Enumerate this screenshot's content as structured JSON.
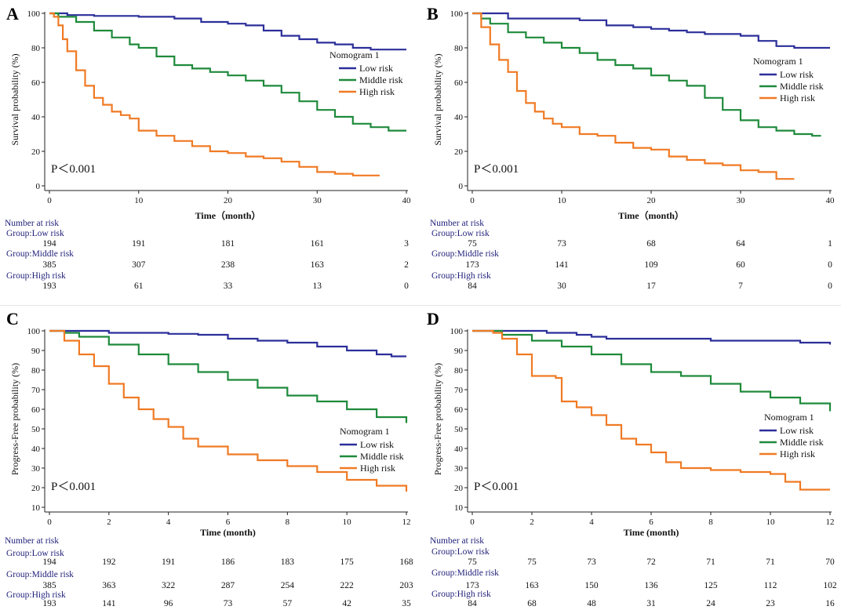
{
  "colors": {
    "low": "#2b2f9a",
    "middle": "#1e8a3b",
    "high": "#f07a24",
    "risk_text": "#1f1f7a"
  },
  "chart_data": [
    {
      "type": "line",
      "panel": "A",
      "ylabel": "Survival probability (%)",
      "xlabel": "Time（month）",
      "xlim": [
        0,
        40
      ],
      "ylim": [
        0,
        100
      ],
      "xticks": [
        0,
        10,
        20,
        30,
        40
      ],
      "yticks": [
        0,
        20,
        40,
        60,
        80,
        100
      ],
      "pvalue": "P＜0.001",
      "legend": {
        "title": "Nomogram 1",
        "position": "top-right"
      },
      "series": [
        {
          "name": "Low risk",
          "key": "low",
          "x": [
            0,
            2,
            5,
            10,
            14,
            17,
            20,
            22,
            24,
            26,
            28,
            30,
            32,
            34,
            36,
            37,
            40
          ],
          "y": [
            100,
            99,
            98.5,
            98,
            97,
            95,
            94,
            93,
            90,
            87,
            85,
            83,
            82,
            80,
            79,
            79,
            79
          ]
        },
        {
          "name": "Middle risk",
          "key": "middle",
          "x": [
            0,
            1,
            3,
            5,
            7,
            9,
            10,
            12,
            14,
            16,
            18,
            20,
            22,
            24,
            26,
            28,
            30,
            32,
            34,
            36,
            38,
            40
          ],
          "y": [
            100,
            98,
            95,
            90,
            86,
            82,
            80,
            75,
            70,
            68,
            66,
            64,
            61,
            58,
            54,
            49,
            44,
            40,
            36,
            34,
            32,
            32
          ]
        },
        {
          "name": "High risk",
          "key": "high",
          "x": [
            0,
            0.5,
            1,
            1.5,
            2,
            3,
            4,
            5,
            6,
            7,
            8,
            9,
            10,
            12,
            14,
            16,
            18,
            20,
            22,
            24,
            26,
            28,
            30,
            32,
            34,
            36,
            37
          ],
          "y": [
            100,
            98,
            93,
            85,
            78,
            67,
            58,
            51,
            47,
            43,
            41,
            39,
            32,
            29,
            26,
            23,
            20,
            19,
            17,
            16,
            14,
            11,
            8,
            7,
            6,
            6,
            6
          ]
        }
      ],
      "at_risk": {
        "header": "Number at risk",
        "groups": [
          {
            "label": "Group:Low risk",
            "values": [
              "194",
              "191",
              "181",
              "161",
              "3"
            ]
          },
          {
            "label": "Group:Middle risk",
            "values": [
              "385",
              "307",
              "238",
              "163",
              "2"
            ]
          },
          {
            "label": "Group:High risk",
            "values": [
              "193",
              "61",
              "33",
              "13",
              "0"
            ]
          }
        ]
      }
    },
    {
      "type": "line",
      "panel": "B",
      "ylabel": "Survival probability (%)",
      "xlabel": "Time（month）",
      "xlim": [
        0,
        40
      ],
      "ylim": [
        0,
        100
      ],
      "xticks": [
        0,
        10,
        20,
        30,
        40
      ],
      "yticks": [
        0,
        20,
        40,
        60,
        80,
        100
      ],
      "pvalue": "P＜0.001",
      "legend": {
        "title": "Nomogram 1",
        "position": "top-right"
      },
      "series": [
        {
          "name": "Low risk",
          "key": "low",
          "x": [
            0,
            3,
            4,
            8,
            12,
            15,
            18,
            20,
            22,
            24,
            26,
            28,
            30,
            32,
            34,
            36,
            38,
            40
          ],
          "y": [
            100,
            100,
            97,
            97,
            96,
            93,
            92,
            91,
            90,
            89,
            88,
            88,
            87,
            84,
            81,
            80,
            80,
            80
          ]
        },
        {
          "name": "Middle risk",
          "key": "middle",
          "x": [
            0,
            1,
            2,
            4,
            6,
            8,
            10,
            12,
            14,
            16,
            18,
            20,
            22,
            24,
            26,
            28,
            30,
            32,
            34,
            36,
            38,
            39
          ],
          "y": [
            100,
            97,
            94,
            89,
            86,
            83,
            80,
            77,
            73,
            70,
            68,
            64,
            61,
            58,
            51,
            44,
            38,
            34,
            32,
            30,
            29,
            29
          ]
        },
        {
          "name": "High risk",
          "key": "high",
          "x": [
            0,
            1,
            2,
            3,
            4,
            5,
            6,
            7,
            8,
            9,
            10,
            12,
            14,
            16,
            18,
            20,
            22,
            24,
            26,
            28,
            30,
            32,
            34,
            36
          ],
          "y": [
            100,
            92,
            82,
            73,
            66,
            55,
            48,
            43,
            39,
            36,
            34,
            30,
            29,
            25,
            22,
            21,
            17,
            15,
            13,
            12,
            9,
            8,
            4,
            4
          ]
        }
      ],
      "at_risk": {
        "header": "Number at risk",
        "groups": [
          {
            "label": "Group:Low risk",
            "values": [
              "75",
              "73",
              "68",
              "64",
              "1"
            ]
          },
          {
            "label": "Group:Middle risk",
            "values": [
              "173",
              "141",
              "109",
              "60",
              "0"
            ]
          },
          {
            "label": "Group:High risk",
            "values": [
              "84",
              "30",
              "17",
              "7",
              "0"
            ]
          }
        ]
      }
    },
    {
      "type": "line",
      "panel": "C",
      "ylabel": "Progress-Free probability (%)",
      "xlabel": "Time  (month)",
      "xlim": [
        0,
        12
      ],
      "ylim": [
        10,
        100
      ],
      "xticks": [
        0,
        2,
        4,
        6,
        8,
        10,
        12
      ],
      "yticks": [
        10,
        20,
        30,
        40,
        50,
        60,
        70,
        80,
        90,
        100
      ],
      "pvalue": "P＜0.001",
      "legend": {
        "title": "Nomogram 1",
        "position": "right"
      },
      "series": [
        {
          "name": "Low risk",
          "key": "low",
          "x": [
            0,
            1,
            2,
            3,
            4,
            5,
            6,
            7,
            8,
            9,
            10,
            11,
            11.5,
            12
          ],
          "y": [
            100,
            100,
            99,
            99,
            98.5,
            98,
            96,
            95,
            94,
            92,
            90,
            88,
            87,
            87
          ]
        },
        {
          "name": "Middle risk",
          "key": "middle",
          "x": [
            0,
            0.5,
            1,
            2,
            3,
            4,
            5,
            6,
            7,
            8,
            9,
            10,
            11,
            12
          ],
          "y": [
            100,
            99,
            97,
            93,
            88,
            83,
            79,
            75,
            71,
            67,
            64,
            60,
            56,
            53
          ]
        },
        {
          "name": "High risk",
          "key": "high",
          "x": [
            0,
            0.5,
            1,
            1.5,
            2,
            2.5,
            3,
            3.5,
            4,
            4.5,
            5,
            6,
            7,
            8,
            9,
            10,
            11,
            12
          ],
          "y": [
            100,
            95,
            88,
            82,
            73,
            66,
            60,
            55,
            51,
            45,
            41,
            37,
            34,
            31,
            28,
            24,
            21,
            18
          ]
        }
      ],
      "at_risk": {
        "header": "Number at risk",
        "groups": [
          {
            "label": "Group:Low risk",
            "values": [
              "194",
              "192",
              "191",
              "186",
              "183",
              "175",
              "168"
            ]
          },
          {
            "label": "Group:Middle risk",
            "values": [
              "385",
              "363",
              "322",
              "287",
              "254",
              "222",
              "203"
            ]
          },
          {
            "label": "Group:High risk",
            "values": [
              "193",
              "141",
              "96",
              "73",
              "57",
              "42",
              "35"
            ]
          }
        ]
      }
    },
    {
      "type": "line",
      "panel": "D",
      "ylabel": "Progress-Free probability (%)",
      "xlabel": "Time  (month)",
      "xlim": [
        0,
        12
      ],
      "ylim": [
        10,
        100
      ],
      "xticks": [
        0,
        2,
        4,
        6,
        8,
        10,
        12
      ],
      "yticks": [
        10,
        20,
        30,
        40,
        50,
        60,
        70,
        80,
        90,
        100
      ],
      "pvalue": "P＜0.001",
      "legend": {
        "title": "Nomogram 1",
        "position": "right"
      },
      "series": [
        {
          "name": "Low risk",
          "key": "low",
          "x": [
            0,
            2,
            2.5,
            3,
            3.5,
            4,
            4.5,
            7,
            8,
            10,
            11,
            11.5,
            12
          ],
          "y": [
            100,
            100,
            99,
            99,
            98,
            97,
            96,
            96,
            95,
            95,
            94,
            94,
            93
          ]
        },
        {
          "name": "Middle risk",
          "key": "middle",
          "x": [
            0,
            0.8,
            1,
            2,
            3,
            4,
            5,
            6,
            7,
            8,
            9,
            10,
            11,
            12
          ],
          "y": [
            100,
            100,
            98,
            95,
            92,
            88,
            83,
            79,
            77,
            73,
            69,
            66,
            63,
            59
          ]
        },
        {
          "name": "High risk",
          "key": "high",
          "x": [
            0,
            0.7,
            1,
            1.5,
            2,
            2.8,
            3,
            3.5,
            4,
            4.5,
            5,
            5.5,
            6,
            6.5,
            7,
            8,
            9,
            10,
            10.5,
            11,
            12
          ],
          "y": [
            100,
            99,
            96,
            88,
            77,
            76,
            64,
            61,
            57,
            52,
            45,
            42,
            38,
            33,
            30,
            29,
            28,
            27,
            23,
            19,
            19
          ]
        }
      ],
      "at_risk": {
        "header": "Number at risk",
        "groups": [
          {
            "label": "Group:Low risk",
            "values": [
              "75",
              "75",
              "73",
              "72",
              "71",
              "71",
              "70"
            ]
          },
          {
            "label": "Group:Middle risk",
            "values": [
              "173",
              "163",
              "150",
              "136",
              "125",
              "112",
              "102"
            ]
          },
          {
            "label": "Group:High risk",
            "values": [
              "84",
              "68",
              "48",
              "31",
              "24",
              "23",
              "16"
            ]
          }
        ]
      }
    }
  ]
}
